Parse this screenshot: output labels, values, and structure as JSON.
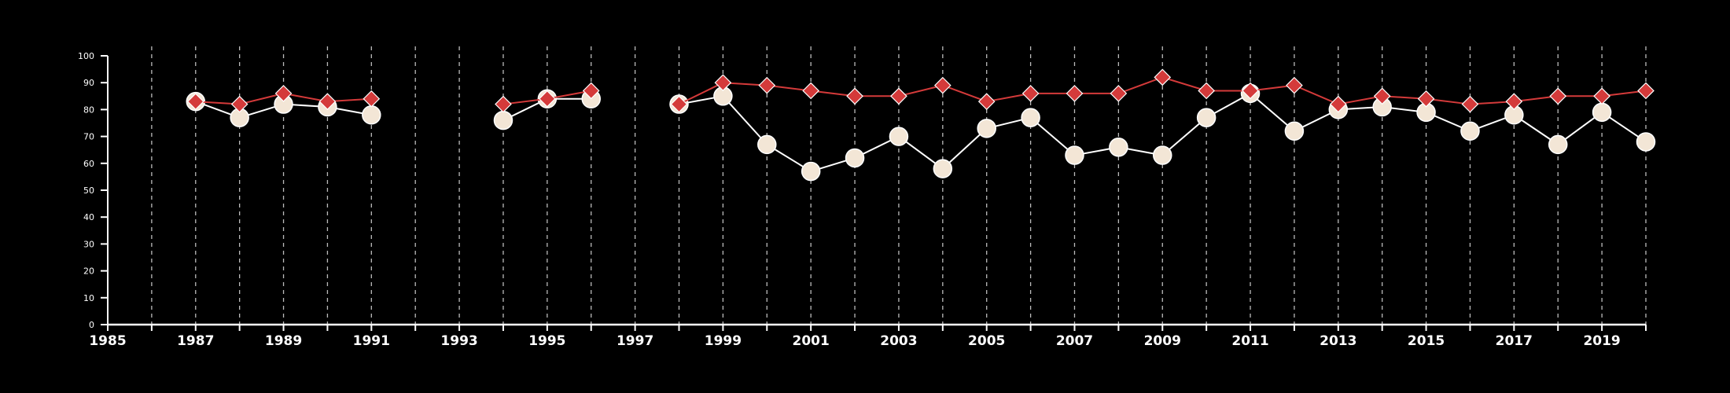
{
  "chart_data": {
    "type": "line",
    "title": "",
    "xlabel": "",
    "ylabel": "",
    "xlim": [
      1985,
      2020
    ],
    "ylim": [
      0,
      100
    ],
    "x_ticks": [
      1985,
      1987,
      1989,
      1991,
      1993,
      1995,
      1997,
      1999,
      2001,
      2003,
      2005,
      2007,
      2009,
      2011,
      2013,
      2015,
      2017,
      2019
    ],
    "y_ticks": [
      0,
      10,
      20,
      30,
      40,
      50,
      60,
      70,
      80,
      90,
      100
    ],
    "vertical_dashed_gridlines_years": [
      1986,
      1987,
      1988,
      1989,
      1990,
      1991,
      1992,
      1993,
      1994,
      1995,
      1996,
      1997,
      1998,
      1999,
      2000,
      2001,
      2002,
      2003,
      2004,
      2005,
      2006,
      2007,
      2008,
      2009,
      2010,
      2011,
      2012,
      2013,
      2014,
      2015,
      2016,
      2017,
      2018,
      2019,
      2020
    ],
    "series": [
      {
        "marker": "circle",
        "color": "#ffffff",
        "marker_fill": "#f3e6d6",
        "points": [
          {
            "x": 1987,
            "y": 83
          },
          {
            "x": 1988,
            "y": 77
          },
          {
            "x": 1989,
            "y": 82
          },
          {
            "x": 1990,
            "y": 81
          },
          {
            "x": 1991,
            "y": 78
          },
          {
            "x": 1992,
            "y": null
          },
          {
            "x": 1993,
            "y": null
          },
          {
            "x": 1994,
            "y": 76
          },
          {
            "x": 1995,
            "y": 84
          },
          {
            "x": 1996,
            "y": 84
          },
          {
            "x": 1997,
            "y": null
          },
          {
            "x": 1998,
            "y": 82
          },
          {
            "x": 1999,
            "y": 85
          },
          {
            "x": 2000,
            "y": 67
          },
          {
            "x": 2001,
            "y": 57
          },
          {
            "x": 2002,
            "y": 62
          },
          {
            "x": 2003,
            "y": 70
          },
          {
            "x": 2004,
            "y": 58
          },
          {
            "x": 2005,
            "y": 73
          },
          {
            "x": 2006,
            "y": 77
          },
          {
            "x": 2007,
            "y": 63
          },
          {
            "x": 2008,
            "y": 66
          },
          {
            "x": 2009,
            "y": 63
          },
          {
            "x": 2010,
            "y": 77
          },
          {
            "x": 2011,
            "y": 86
          },
          {
            "x": 2012,
            "y": 72
          },
          {
            "x": 2013,
            "y": 80
          },
          {
            "x": 2014,
            "y": 81
          },
          {
            "x": 2015,
            "y": 79
          },
          {
            "x": 2016,
            "y": 72
          },
          {
            "x": 2017,
            "y": 78
          },
          {
            "x": 2018,
            "y": 67
          },
          {
            "x": 2019,
            "y": 79
          },
          {
            "x": 2020,
            "y": 68
          }
        ]
      },
      {
        "marker": "diamond",
        "color": "#d43a3a",
        "marker_fill": "#d43a3a",
        "points": [
          {
            "x": 1987,
            "y": 83
          },
          {
            "x": 1988,
            "y": 82
          },
          {
            "x": 1989,
            "y": 86
          },
          {
            "x": 1990,
            "y": 83
          },
          {
            "x": 1991,
            "y": 84
          },
          {
            "x": 1992,
            "y": null
          },
          {
            "x": 1993,
            "y": null
          },
          {
            "x": 1994,
            "y": 82
          },
          {
            "x": 1995,
            "y": 84
          },
          {
            "x": 1996,
            "y": 87
          },
          {
            "x": 1997,
            "y": null
          },
          {
            "x": 1998,
            "y": 82
          },
          {
            "x": 1999,
            "y": 90
          },
          {
            "x": 2000,
            "y": 89
          },
          {
            "x": 2001,
            "y": 87
          },
          {
            "x": 2002,
            "y": 85
          },
          {
            "x": 2003,
            "y": 85
          },
          {
            "x": 2004,
            "y": 89
          },
          {
            "x": 2005,
            "y": 83
          },
          {
            "x": 2006,
            "y": 86
          },
          {
            "x": 2007,
            "y": 86
          },
          {
            "x": 2008,
            "y": 86
          },
          {
            "x": 2009,
            "y": 92
          },
          {
            "x": 2010,
            "y": 87
          },
          {
            "x": 2011,
            "y": 87
          },
          {
            "x": 2012,
            "y": 89
          },
          {
            "x": 2013,
            "y": 82
          },
          {
            "x": 2014,
            "y": 85
          },
          {
            "x": 2015,
            "y": 84
          },
          {
            "x": 2016,
            "y": 82
          },
          {
            "x": 2017,
            "y": 83
          },
          {
            "x": 2018,
            "y": 85
          },
          {
            "x": 2019,
            "y": 85
          },
          {
            "x": 2020,
            "y": 87
          }
        ]
      }
    ],
    "grid": {
      "vertical": true,
      "horizontal": false,
      "style": "dashed"
    },
    "legend": "none",
    "colors": {
      "background": "#000000",
      "axis": "#ffffff",
      "grid": "#bbbbbb"
    }
  }
}
